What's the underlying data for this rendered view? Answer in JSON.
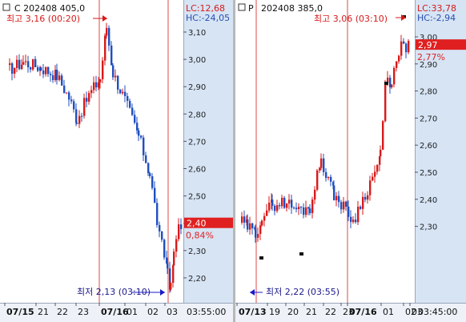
{
  "colors": {
    "up": "#d71a1a",
    "down": "#1f4fbf",
    "axis_bg": "#d6e4f4",
    "marker": "#d71a1a",
    "low_marker": "#1a1ac8",
    "label_box": "#e02020",
    "pct_text": "#e02020",
    "lc_text": "#d71a1a",
    "hc_text": "#2a4fb0"
  },
  "left": {
    "checkbox": true,
    "contract": "C  202408 405,0",
    "lc": "LC:12,68",
    "hc": "HC:-24,05",
    "high_annotation": "최고 3,16 (00:20)",
    "low_annotation": "최저 2,13 (03:10)",
    "current_price": "2,40",
    "change_pct": "0,84%",
    "y_ticks": [
      "3,10",
      "3,00",
      "2,90",
      "2,80",
      "2,70",
      "2,60",
      "2,50",
      "2,40",
      "2,30",
      "2,20"
    ],
    "x_labels": [
      "07/15",
      "21",
      "22",
      "23",
      "07/16",
      "01",
      "02",
      "03"
    ],
    "time_label": "03:55:00"
  },
  "right": {
    "checkbox": true,
    "type_letter": "P",
    "contract": "202408 385,0",
    "lc": "LC:33,78",
    "hc": "HC:-2,94",
    "high_annotation": "최고 3,06 (03:10)",
    "low_annotation": "최저 2,22 (03:55)",
    "current_price": "2,97",
    "change_pct": "2,77%",
    "y_ticks": [
      "3,00",
      "2,90",
      "2,80",
      "2,70",
      "2,60",
      "2,50",
      "2,40",
      "2,30"
    ],
    "x_labels": [
      "07/13",
      "19",
      "20",
      "21",
      "22",
      "23",
      "07/16",
      "01",
      "02",
      "03"
    ],
    "time_label": "03:45:00"
  }
}
